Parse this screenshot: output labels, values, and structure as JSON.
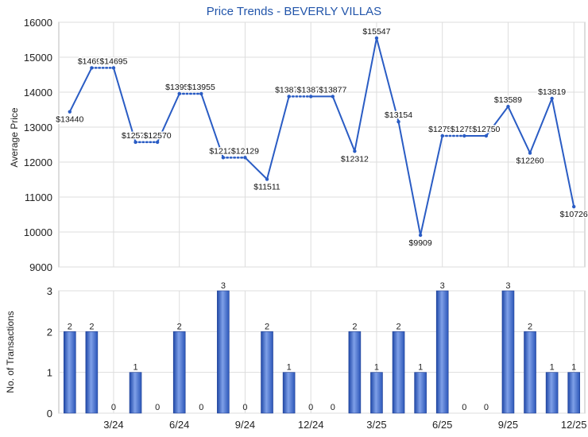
{
  "chart_data": [
    {
      "type": "line",
      "title": "Price Trends - BEVERLY VILLAS",
      "ylabel": "Average Price",
      "xlabel": "",
      "ylim": [
        9000,
        16000
      ],
      "yticks": [
        9000,
        10000,
        11000,
        12000,
        13000,
        14000,
        15000,
        16000
      ],
      "x": [
        "2024-01",
        "2024-02",
        "2024-03",
        "2024-04",
        "2024-05",
        "2024-06",
        "2024-07",
        "2024-08",
        "2024-09",
        "2024-10",
        "2024-11",
        "2024-12",
        "2025-01",
        "2025-02",
        "2025-03",
        "2025-04",
        "2025-05",
        "2025-06",
        "2025-07",
        "2025-08",
        "2025-09",
        "2025-10",
        "2025-11",
        "2025-12"
      ],
      "values": [
        13440,
        14695,
        14695,
        12570,
        12570,
        13955,
        13955,
        12129,
        12129,
        11511,
        13877,
        13877,
        13877,
        12312,
        15547,
        13154,
        9909,
        12750,
        12750,
        12750,
        13589,
        12260,
        13819,
        10726
      ],
      "labels": [
        "$13440",
        "$14695",
        "$14695",
        "$12570",
        "$12570",
        "$13955",
        "$13955",
        "$12129",
        "$12129",
        "$11511",
        "$13877",
        "$13877",
        "$13877",
        "$12312",
        "$15547",
        "$13154",
        "$9909",
        "$12750",
        "$12750",
        "$12750",
        "$13589",
        "$12260",
        "$13819",
        "$10726"
      ],
      "interpolated": [
        false,
        false,
        true,
        false,
        true,
        false,
        true,
        false,
        true,
        false,
        false,
        true,
        false,
        false,
        false,
        false,
        false,
        false,
        true,
        false,
        false,
        false,
        false,
        false
      ],
      "line_color": "#2a5cc4",
      "grid": true
    },
    {
      "type": "bar",
      "ylabel": "No. of Transactions",
      "xlabel": "",
      "ylim": [
        0,
        3
      ],
      "yticks": [
        0,
        1,
        2,
        3
      ],
      "categories": [
        "2024-01",
        "2024-02",
        "2024-03",
        "2024-04",
        "2024-05",
        "2024-06",
        "2024-07",
        "2024-08",
        "2024-09",
        "2024-10",
        "2024-11",
        "2024-12",
        "2025-01",
        "2025-02",
        "2025-03",
        "2025-04",
        "2025-05",
        "2025-06",
        "2025-07",
        "2025-08",
        "2025-09",
        "2025-10",
        "2025-11",
        "2025-12"
      ],
      "values": [
        2,
        2,
        0,
        1,
        0,
        2,
        0,
        3,
        0,
        2,
        1,
        0,
        0,
        2,
        1,
        2,
        1,
        3,
        0,
        0,
        3,
        2,
        1,
        1
      ],
      "xtick_labels": [
        "3/24",
        "6/24",
        "9/24",
        "12/24",
        "3/25",
        "6/25",
        "9/25",
        "12/25"
      ],
      "xtick_months": [
        "2024-03",
        "2024-06",
        "2024-09",
        "2024-12",
        "2025-03",
        "2025-06",
        "2025-09",
        "2025-12"
      ],
      "bar_color": "#3366cc",
      "grid": true
    }
  ]
}
